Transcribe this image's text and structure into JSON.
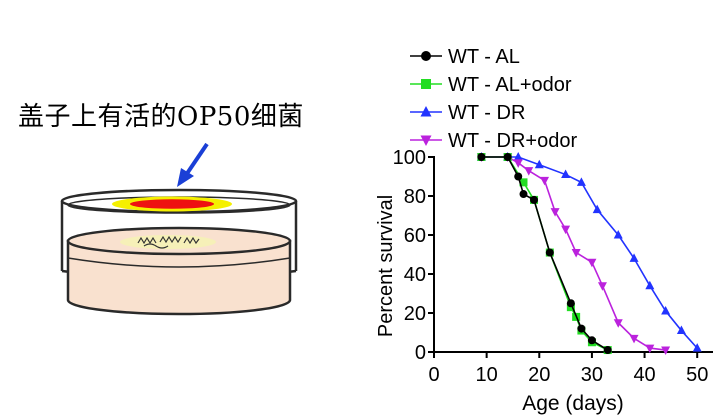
{
  "caption": "盖子上有活的OP50细菌",
  "colors": {
    "arrow": "#1a3fd6",
    "bacteria_outer": "#f5f000",
    "bacteria_inner": "#ee1111",
    "agar": "#f9e1cf",
    "worm_zone": "#f6f0b8",
    "wt_al": "#000000",
    "wt_al_odor": "#22dd22",
    "wt_dr": "#2233ff",
    "wt_dr_odor": "#bb22dd"
  },
  "chart_data": {
    "type": "line",
    "title": "",
    "xlabel": "Age (days)",
    "ylabel": "Percent survival",
    "xlim": [
      0,
      53
    ],
    "ylim": [
      0,
      100
    ],
    "xticks": [
      0,
      10,
      20,
      30,
      40,
      50
    ],
    "yticks": [
      0,
      20,
      40,
      60,
      80,
      100
    ],
    "legend_position": "top-right",
    "series": [
      {
        "name": "WT - AL",
        "marker": "circle",
        "color": "#000000",
        "points": [
          [
            9,
            100
          ],
          [
            14,
            100
          ],
          [
            16,
            90
          ],
          [
            17,
            81
          ],
          [
            19,
            78
          ],
          [
            22,
            51
          ],
          [
            26,
            25
          ],
          [
            28,
            12
          ],
          [
            30,
            6
          ],
          [
            33,
            1
          ]
        ]
      },
      {
        "name": "WT - AL+odor",
        "marker": "square",
        "color": "#22dd22",
        "points": [
          [
            9,
            100
          ],
          [
            14,
            100
          ],
          [
            17,
            87
          ],
          [
            19,
            78
          ],
          [
            22,
            51
          ],
          [
            26,
            23
          ],
          [
            27,
            18
          ],
          [
            28,
            11
          ],
          [
            30,
            5
          ],
          [
            33,
            1
          ]
        ]
      },
      {
        "name": "WT - DR",
        "marker": "triangle-up",
        "color": "#2233ff",
        "points": [
          [
            9,
            100
          ],
          [
            14,
            100
          ],
          [
            16,
            100
          ],
          [
            20,
            96
          ],
          [
            25,
            91
          ],
          [
            28,
            87
          ],
          [
            31,
            73
          ],
          [
            35,
            60
          ],
          [
            38,
            48
          ],
          [
            41,
            34
          ],
          [
            44,
            21
          ],
          [
            47,
            11
          ],
          [
            50,
            2
          ]
        ]
      },
      {
        "name": "WT - DR+odor",
        "marker": "triangle-down",
        "color": "#bb22dd",
        "points": [
          [
            9,
            100
          ],
          [
            14,
            100
          ],
          [
            16,
            97
          ],
          [
            18,
            93
          ],
          [
            21,
            88
          ],
          [
            23,
            72
          ],
          [
            25,
            63
          ],
          [
            27,
            51
          ],
          [
            30,
            46
          ],
          [
            32,
            34
          ],
          [
            35,
            15
          ],
          [
            38,
            7
          ],
          [
            41,
            2
          ],
          [
            44,
            1
          ]
        ]
      }
    ]
  }
}
